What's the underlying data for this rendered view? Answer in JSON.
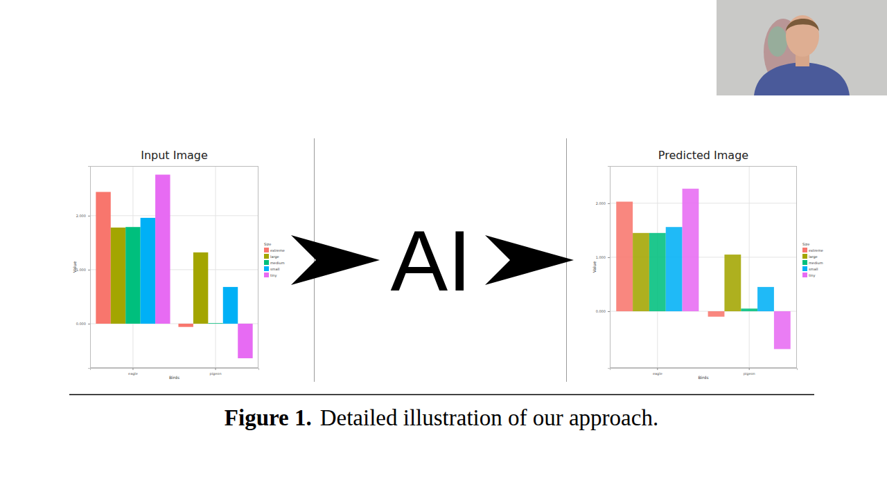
{
  "figure": {
    "caption_label": "Figure 1.",
    "caption_text": "Detailed illustration of our approach.",
    "center_text": "AI"
  },
  "chart_data": [
    {
      "type": "bar",
      "title": "Input Image",
      "x_label": "Birds",
      "y_label": "Value",
      "categories": [
        "eagle",
        "pigeon"
      ],
      "series": [
        {
          "name": "extreme",
          "color": "#f8766d",
          "values": [
            2.44,
            -0.06
          ]
        },
        {
          "name": "large",
          "color": "#a3a500",
          "values": [
            1.78,
            1.32
          ]
        },
        {
          "name": "medium",
          "color": "#00bf7d",
          "values": [
            1.79,
            0.01
          ]
        },
        {
          "name": "small",
          "color": "#00b0f6",
          "values": [
            1.96,
            0.68
          ]
        },
        {
          "name": "tiny",
          "color": "#e76bf3",
          "values": [
            2.76,
            -0.64
          ]
        }
      ],
      "ylim": [
        -0.82,
        2.92
      ],
      "yticks": [
        {
          "value": 0,
          "label": "0.000"
        },
        {
          "value": 1,
          "label": "1.000"
        },
        {
          "value": 2,
          "label": "2.000"
        }
      ],
      "grid": true,
      "legend": "right",
      "legend_title": "Size"
    },
    {
      "type": "bar",
      "title": "Predicted Image",
      "x_label": "Birds",
      "y_label": "Value",
      "categories": [
        "eagle",
        "pigeon"
      ],
      "series": [
        {
          "name": "extreme",
          "color": "#f8766d",
          "values": [
            2.03,
            -0.1
          ]
        },
        {
          "name": "large",
          "color": "#a3a500",
          "values": [
            1.45,
            1.05
          ]
        },
        {
          "name": "medium",
          "color": "#00bf7d",
          "values": [
            1.45,
            0.05
          ]
        },
        {
          "name": "small",
          "color": "#00b0f6",
          "values": [
            1.56,
            0.45
          ]
        },
        {
          "name": "tiny",
          "color": "#e76bf3",
          "values": [
            2.27,
            -0.7
          ]
        }
      ],
      "ylim": [
        -1.05,
        2.69
      ],
      "yticks": [
        {
          "value": 0,
          "label": "0.000"
        },
        {
          "value": 1,
          "label": "1.000"
        },
        {
          "value": 2,
          "label": "2.000"
        }
      ],
      "grid": true,
      "legend": "right",
      "legend_title": "Size"
    }
  ]
}
